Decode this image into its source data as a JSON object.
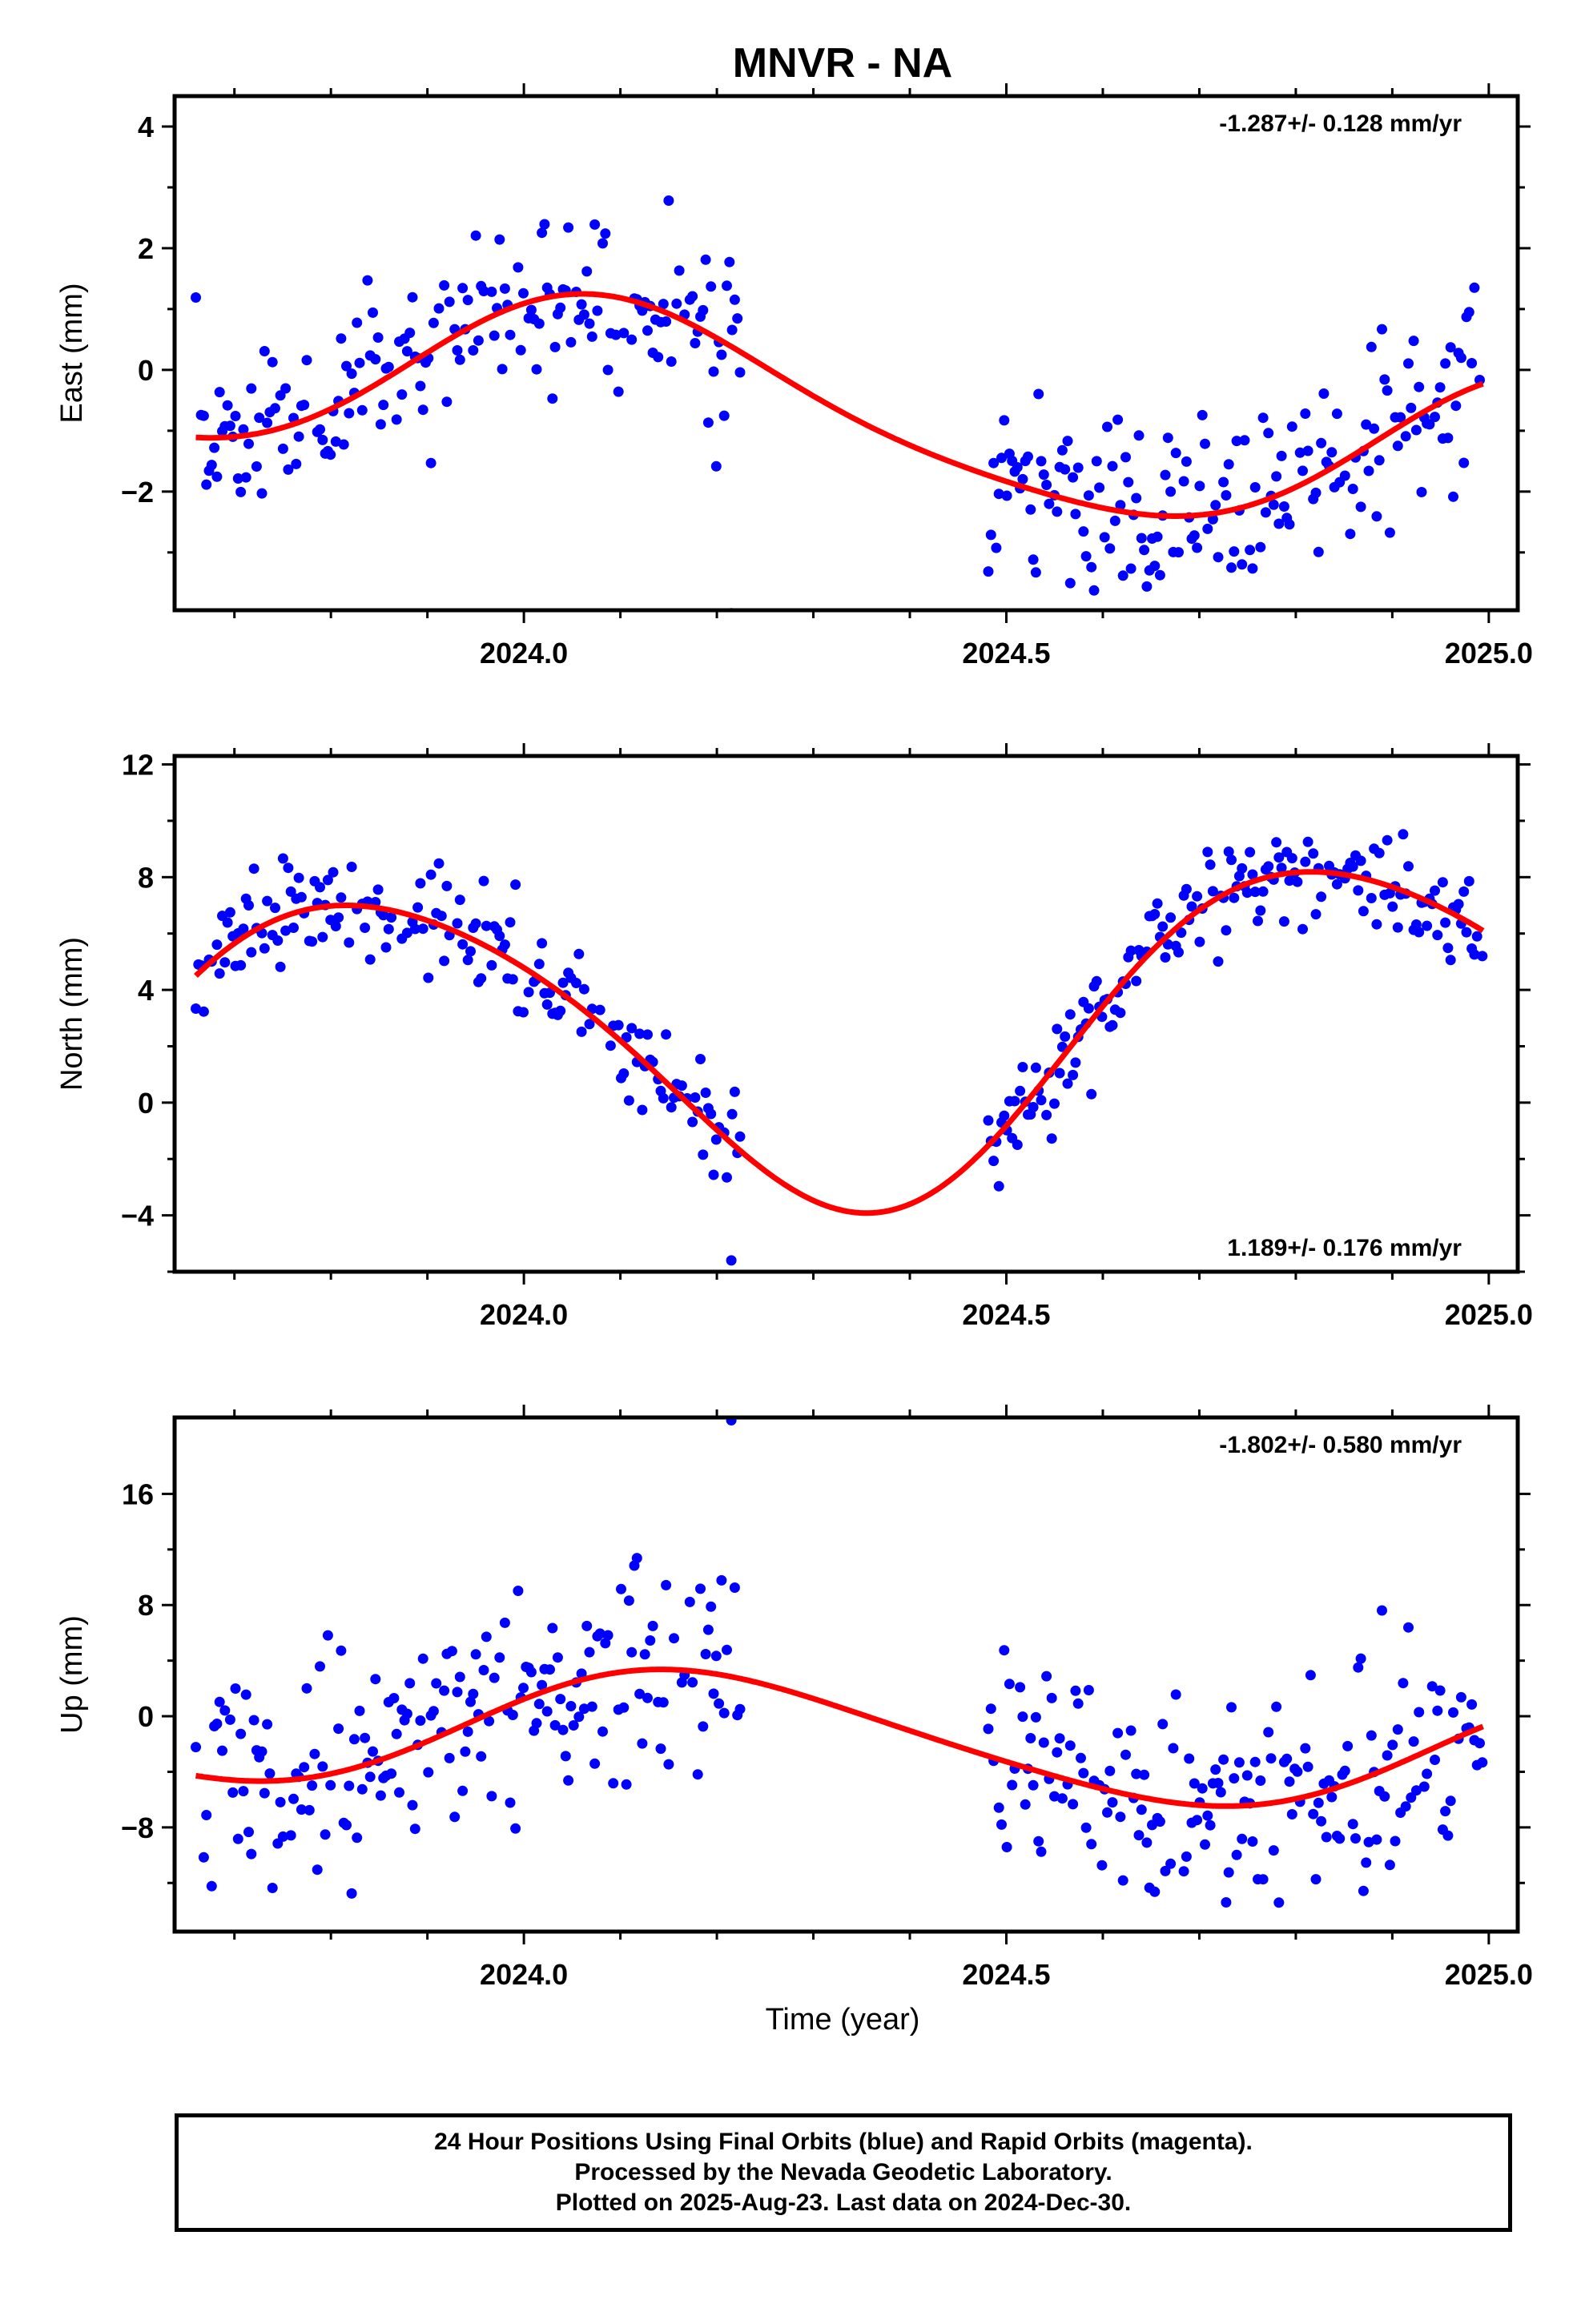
{
  "title": "MNVR - NA",
  "xlabel": "Time (year)",
  "colors": {
    "points": "#0000ff",
    "fit": "#ff0000",
    "frame": "#000000"
  },
  "footer": {
    "line1": "24 Hour Positions Using Final Orbits (blue) and Rapid Orbits (magenta).",
    "line2": "Processed by the Nevada Geodetic Laboratory.",
    "line3": "Plotted on 2025-Aug-23. Last data on 2024-Dec-30."
  },
  "chart_data": [
    {
      "type": "scatter",
      "name": "east",
      "ylabel": "East (mm)",
      "rate_label": "-1.287+/- 0.128 mm/yr",
      "rate_position": "top-right",
      "xlim": [
        2023.638,
        2025.03
      ],
      "ylim": [
        -3.95,
        4.5
      ],
      "xticks": [
        "2024.0",
        "2024.5",
        "2025.0"
      ],
      "yticks": [
        4,
        2,
        0,
        -2
      ],
      "ytick_labels": [
        "4",
        "2",
        "0",
        "−2"
      ],
      "fit": {
        "period": 1.0,
        "offset": -0.7,
        "trend": -1.287,
        "sin": 0.82,
        "cos": 1.14,
        "sin2": 0.1,
        "cos2": 0.2
      },
      "noise": 0.75,
      "outlier": -4.0,
      "seed": 11
    },
    {
      "type": "scatter",
      "name": "north",
      "ylabel": "North (mm)",
      "rate_label": "1.189+/- 0.176 mm/yr",
      "rate_position": "bottom-right",
      "xlim": [
        2023.638,
        2025.03
      ],
      "ylim": [
        -6.0,
        12.3
      ],
      "xticks": [
        "2024.0",
        "2024.5",
        "2025.0"
      ],
      "yticks": [
        12,
        8,
        4,
        0,
        -4
      ],
      "ytick_labels": [
        "12",
        "8",
        "4",
        "0",
        "−4"
      ],
      "fit": {
        "period": 1.0,
        "offset": 2.3,
        "trend": 1.189,
        "sin": -4.8,
        "cos": 3.1,
        "sin2": 0.6,
        "cos2": -0.2
      },
      "noise": 0.9,
      "outlier": -5.6,
      "seed": 23
    },
    {
      "type": "scatter",
      "name": "up",
      "ylabel": "Up (mm)",
      "rate_label": "-1.802+/- 0.580 mm/yr",
      "rate_position": "top-right",
      "xlim": [
        2023.638,
        2025.03
      ],
      "ylim": [
        -15.5,
        21.5
      ],
      "xticks": [
        "2024.0",
        "2024.5",
        "2025.0"
      ],
      "yticks": [
        16,
        8,
        0,
        -8
      ],
      "ytick_labels": [
        "16",
        "8",
        "0",
        "−8"
      ],
      "fit": {
        "period": 1.0,
        "offset": -1.5,
        "trend": -1.802,
        "sin": 3.9,
        "cos": 1.8,
        "sin2": 0.4,
        "cos2": 0.3
      },
      "noise": 3.8,
      "outlier": 21.3,
      "seed": 37
    }
  ],
  "data_span": {
    "start": 2023.66,
    "gap_start": 2024.225,
    "gap_end": 2024.48,
    "end": 2024.995
  }
}
